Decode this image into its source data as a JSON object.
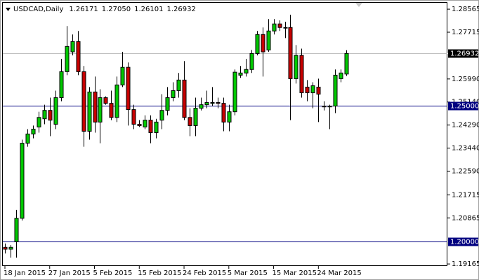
{
  "chart_data": {
    "type": "candlestick",
    "title": "USDCAD,Daily",
    "title_values": [
      "1.26171",
      "1.27050",
      "1.26101",
      "1.26932"
    ],
    "categories": [
      "18 Jan 2015",
      null,
      null,
      null,
      null,
      null,
      null,
      null,
      "27 Jan 2015",
      null,
      null,
      null,
      null,
      null,
      null,
      null,
      "5 Feb 2015",
      null,
      null,
      null,
      null,
      null,
      null,
      null,
      "15 Feb 2015",
      null,
      null,
      null,
      null,
      null,
      null,
      null,
      "24 Feb 2015",
      null,
      null,
      null,
      null,
      null,
      null,
      null,
      "5 Mar 2015",
      null,
      null,
      null,
      null,
      null,
      null,
      null,
      "15 Mar 2015",
      null,
      null,
      null,
      null,
      null,
      null,
      null,
      "24 Mar 2015",
      null,
      null,
      null,
      null,
      null
    ],
    "open": [
      1.1978,
      1.1971,
      1.1999,
      1.2085,
      1.2362,
      1.2396,
      1.2422,
      1.2452,
      1.2483,
      1.2432,
      1.253,
      1.2626,
      1.2699,
      1.2737,
      1.2626,
      1.2406,
      1.2551,
      1.244,
      1.253,
      1.2509,
      1.2457,
      1.2577,
      1.2642,
      1.2486,
      1.2432,
      1.2422,
      1.2447,
      1.2401,
      1.2447,
      1.2483,
      1.253,
      1.2556,
      1.2595,
      1.2457,
      1.2427,
      1.2491,
      1.2504,
      1.2509,
      1.2512,
      1.2509,
      1.244,
      1.2478,
      1.2613,
      1.2621,
      1.2634,
      1.2693,
      1.2763,
      1.2706,
      1.2776,
      1.2802,
      1.2789,
      1.2789,
      1.26,
      1.2686,
      1.2569,
      1.2548,
      1.2569,
      1.2499,
      1.2496,
      1.2499,
      1.26,
      1.26171
    ],
    "high": [
      1.1992,
      1.1986,
      1.2116,
      1.2375,
      1.2414,
      1.2427,
      1.2478,
      1.2504,
      1.253,
      1.2556,
      1.2673,
      1.2794,
      1.2763,
      1.2776,
      1.2647,
      1.2569,
      1.2608,
      1.2561,
      1.2535,
      1.2556,
      1.2608,
      1.2699,
      1.266,
      1.2504,
      1.2447,
      1.2465,
      1.2465,
      1.2452,
      1.2543,
      1.2569,
      1.2587,
      1.2621,
      1.2665,
      1.2491,
      1.253,
      1.253,
      1.2556,
      1.2569,
      1.253,
      1.253,
      1.2504,
      1.2634,
      1.2647,
      1.2673,
      1.2706,
      1.2776,
      1.2789,
      1.282,
      1.282,
      1.2815,
      1.281,
      1.2836,
      1.2724,
      1.2711,
      1.2595,
      1.2587,
      1.26,
      1.2517,
      1.2504,
      1.2634,
      1.2634,
      1.2705
    ],
    "low": [
      1.1955,
      1.194,
      1.194,
      1.2077,
      1.2349,
      1.238,
      1.2401,
      1.2432,
      1.2388,
      1.2414,
      1.2517,
      1.2613,
      1.2686,
      1.2613,
      1.2349,
      1.2375,
      1.2401,
      1.2362,
      1.2504,
      1.2447,
      1.244,
      1.2569,
      1.2427,
      1.2414,
      1.2422,
      1.2414,
      1.2362,
      1.238,
      1.2414,
      1.2465,
      1.2517,
      1.253,
      1.2447,
      1.2388,
      1.2388,
      1.2483,
      1.2491,
      1.2499,
      1.2491,
      1.2406,
      1.2406,
      1.2465,
      1.2603,
      1.2608,
      1.2621,
      1.2686,
      1.2608,
      1.2699,
      1.2763,
      1.2776,
      1.275,
      1.2447,
      1.2582,
      1.253,
      1.2517,
      1.2491,
      1.244,
      1.2483,
      1.2414,
      1.2473,
      1.2587,
      1.26101
    ],
    "close": [
      1.1971,
      1.1978,
      1.2085,
      1.2362,
      1.2396,
      1.2414,
      1.2457,
      1.2483,
      1.2447,
      1.253,
      1.2626,
      1.2719,
      1.2737,
      1.2626,
      1.2406,
      1.2551,
      1.244,
      1.253,
      1.2509,
      1.2457,
      1.2577,
      1.2642,
      1.2486,
      1.2432,
      1.2427,
      1.2447,
      1.2401,
      1.244,
      1.2483,
      1.253,
      1.2556,
      1.2595,
      1.2457,
      1.2427,
      1.2491,
      1.2504,
      1.2512,
      1.2512,
      1.2509,
      1.244,
      1.2478,
      1.2624,
      1.2621,
      1.2634,
      1.2693,
      1.2763,
      1.2699,
      1.2776,
      1.2802,
      1.2789,
      1.2787,
      1.26,
      1.2686,
      1.2548,
      1.2548,
      1.2574,
      1.2543,
      1.2496,
      1.2499,
      1.2613,
      1.2621,
      1.26932
    ],
    "up_color": "#00c800",
    "down_color": "#c80000",
    "ylim": [
      1.1909,
      1.288
    ],
    "yticks": [
      1.28565,
      1.27715,
      {
        "value": 1.2599,
        "label": "1.25990"
      },
      {
        "value": 1.2514,
        "label": "1.25140"
      },
      {
        "value": 1.2429,
        "label": "1.24290"
      },
      {
        "value": 1.2344,
        "label": "1.23440"
      },
      {
        "value": 1.2259,
        "label": "1.22590"
      },
      1.21715,
      1.20865,
      1.19165
    ],
    "hlines": [
      {
        "value": 1.25,
        "label": "1.25000",
        "color": "#000080"
      },
      {
        "value": 1.2,
        "label": "1.20000",
        "color": "#000080"
      }
    ],
    "price_line": {
      "value": 1.26932,
      "label": "1.26932",
      "color": "#c0c0c0"
    },
    "grid": false
  }
}
